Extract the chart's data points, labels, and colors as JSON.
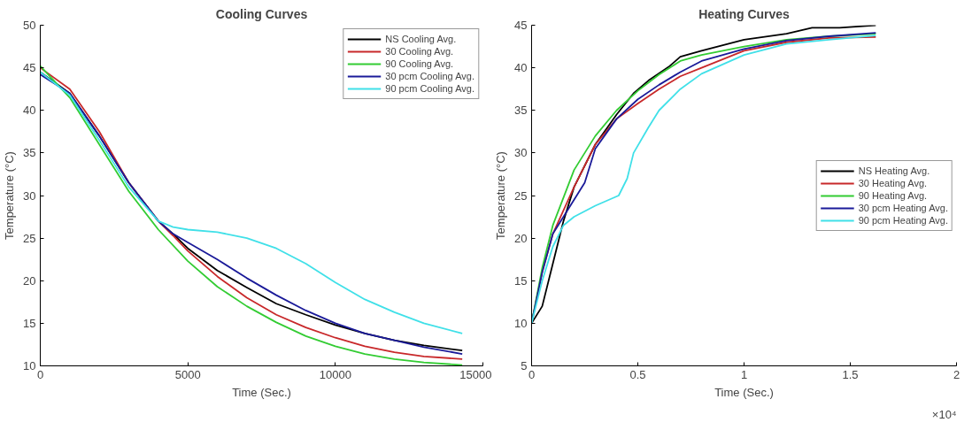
{
  "chart_data": [
    {
      "type": "line",
      "title": "Cooling Curves",
      "xlabel": "Time (Sec.)",
      "ylabel": "Temperature (°C)",
      "xlim": [
        0,
        15000
      ],
      "ylim": [
        10,
        50
      ],
      "xticks": [
        0,
        5000,
        10000,
        15000
      ],
      "yticks": [
        10,
        15,
        20,
        25,
        30,
        35,
        40,
        45,
        50
      ],
      "grid": false,
      "legend": "top right",
      "line_style": "solid",
      "series": [
        {
          "name": "NS Cooling Avg.",
          "color": "#000000",
          "x": [
            0,
            1000,
            2000,
            3000,
            4000,
            4500,
            5000,
            6000,
            7000,
            8000,
            9000,
            10000,
            11000,
            12000,
            13000,
            14300
          ],
          "values": [
            44.5,
            42,
            37,
            31.5,
            27,
            25.5,
            23.8,
            21.2,
            19.2,
            17.3,
            16,
            14.8,
            13.8,
            13,
            12.4,
            11.8
          ]
        },
        {
          "name": "30 Cooling Avg.",
          "color": "#c8282a",
          "x": [
            0,
            1000,
            2000,
            3000,
            4000,
            4500,
            5000,
            6000,
            7000,
            8000,
            9000,
            10000,
            11000,
            12000,
            13000,
            14300
          ],
          "values": [
            45,
            42.5,
            37.5,
            31.5,
            27,
            25.3,
            23.5,
            20.5,
            18,
            16,
            14.5,
            13.3,
            12.3,
            11.6,
            11.1,
            10.8
          ]
        },
        {
          "name": "90 Cooling Avg.",
          "color": "#33cc33",
          "x": [
            0,
            1000,
            2000,
            3000,
            4000,
            5000,
            6000,
            7000,
            8000,
            9000,
            10000,
            11000,
            12000,
            13000,
            14300
          ],
          "values": [
            45.2,
            41.5,
            36,
            30.5,
            26,
            22.3,
            19.3,
            17,
            15.1,
            13.5,
            12.3,
            11.4,
            10.8,
            10.4,
            10.1
          ]
        },
        {
          "name": "30 pcm Cooling Avg.",
          "color": "#1a1a99",
          "x": [
            0,
            1000,
            2000,
            3000,
            4000,
            4500,
            5000,
            6000,
            7000,
            8000,
            9000,
            10000,
            11000,
            12000,
            13000,
            14300
          ],
          "values": [
            44.2,
            42,
            37,
            31.5,
            27,
            25.5,
            24.5,
            22.5,
            20.3,
            18.3,
            16.5,
            15,
            13.8,
            13,
            12.2,
            11.4
          ]
        },
        {
          "name": "90 pcm Cooling Avg.",
          "color": "#40e0e8",
          "x": [
            0,
            1000,
            2000,
            3000,
            4000,
            4500,
            5000,
            6000,
            7000,
            8000,
            9000,
            10000,
            11000,
            12000,
            13000,
            14300
          ],
          "values": [
            44.5,
            41.8,
            36.5,
            31,
            27,
            26.3,
            26,
            25.7,
            25,
            23.8,
            22,
            19.8,
            17.8,
            16.3,
            15,
            13.8
          ]
        }
      ]
    },
    {
      "type": "line",
      "title": "Heating Curves",
      "xlabel": "Time (Sec.)",
      "ylabel": "Temperature (°C)",
      "xlim": [
        0,
        2
      ],
      "ylim": [
        5,
        45
      ],
      "xticks": [
        0,
        0.5,
        1,
        1.5,
        2
      ],
      "yticks": [
        5,
        10,
        15,
        20,
        25,
        30,
        35,
        40,
        45
      ],
      "grid": false,
      "legend": "right",
      "line_style": "solid",
      "annotations": [
        "×10⁴"
      ],
      "series": [
        {
          "name": "NS Heating Avg.",
          "color": "#000000",
          "x": [
            0,
            0.05,
            0.1,
            0.15,
            0.2,
            0.3,
            0.4,
            0.48,
            0.55,
            0.65,
            0.7,
            0.8,
            1,
            1.2,
            1.32,
            1.45,
            1.62
          ],
          "values": [
            10,
            12,
            17,
            22,
            26,
            31,
            34.5,
            37,
            38.5,
            40.2,
            41.3,
            42,
            43.3,
            44,
            44.7,
            44.7,
            45
          ]
        },
        {
          "name": "30 Heating Avg.",
          "color": "#c8282a",
          "x": [
            0,
            0.05,
            0.1,
            0.2,
            0.3,
            0.4,
            0.5,
            0.6,
            0.7,
            0.8,
            1,
            1.2,
            1.4,
            1.62
          ],
          "values": [
            10,
            16,
            20.5,
            26,
            31,
            34,
            35.8,
            37.5,
            39,
            40,
            42,
            43,
            43.5,
            43.6
          ]
        },
        {
          "name": "90 Heating Avg.",
          "color": "#33cc33",
          "x": [
            0,
            0.05,
            0.1,
            0.2,
            0.3,
            0.4,
            0.5,
            0.6,
            0.7,
            0.8,
            1,
            1.2,
            1.4,
            1.62
          ],
          "values": [
            10,
            16.5,
            21.5,
            28,
            32,
            35,
            37.3,
            39.2,
            40.8,
            41.5,
            42.5,
            43.3,
            43.7,
            44
          ]
        },
        {
          "name": "30 pcm Heating Avg.",
          "color": "#1a1a99",
          "x": [
            0,
            0.05,
            0.1,
            0.2,
            0.25,
            0.3,
            0.4,
            0.5,
            0.6,
            0.7,
            0.8,
            1,
            1.2,
            1.4,
            1.62
          ],
          "values": [
            10,
            16,
            20.5,
            24.5,
            26.5,
            30.5,
            34,
            36.3,
            38,
            39.5,
            40.8,
            42.2,
            43.2,
            43.7,
            44.1
          ]
        },
        {
          "name": "90 pcm Heating Avg.",
          "color": "#40e0e8",
          "x": [
            0,
            0.05,
            0.1,
            0.15,
            0.2,
            0.3,
            0.41,
            0.45,
            0.48,
            0.55,
            0.6,
            0.7,
            0.8,
            1,
            1.2,
            1.4,
            1.62
          ],
          "values": [
            10,
            15,
            19,
            21.5,
            22.5,
            23.8,
            25,
            27,
            30,
            33,
            35,
            37.5,
            39.3,
            41.5,
            42.8,
            43.3,
            43.8
          ]
        }
      ]
    }
  ]
}
